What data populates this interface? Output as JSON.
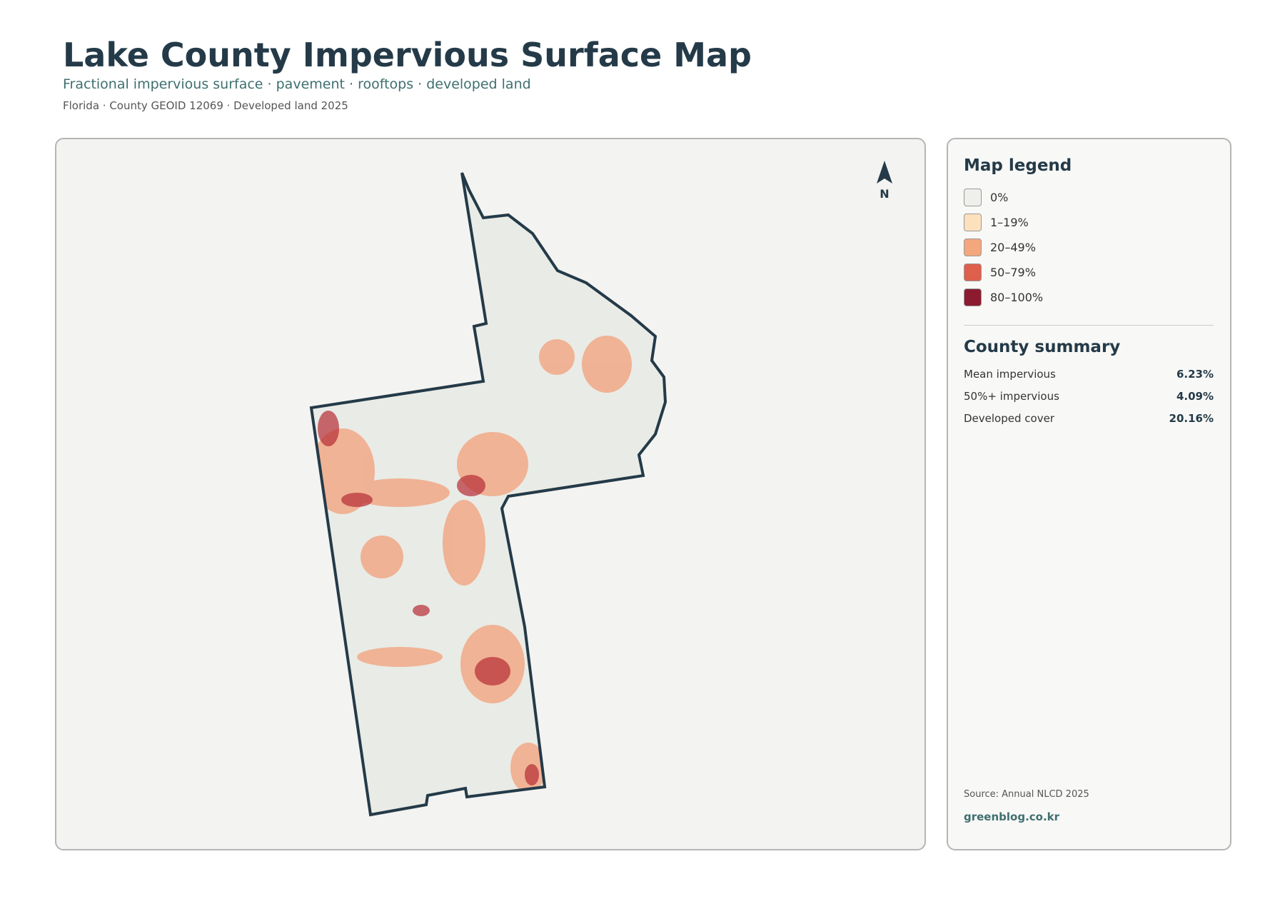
{
  "header": {
    "title": "Lake County Impervious Surface Map",
    "subtitle": "Fractional impervious surface · pavement · rooftops · developed land",
    "meta": "Florida · County GEOID 12069 · Developed land 2025"
  },
  "map": {
    "north": "N"
  },
  "legend": {
    "title": "Map legend",
    "items": [
      {
        "label": "0%",
        "color": "#efefec"
      },
      {
        "label": "1–19%",
        "color": "#fde1bd"
      },
      {
        "label": "20–49%",
        "color": "#f4a67c"
      },
      {
        "label": "50–79%",
        "color": "#de5f4c"
      },
      {
        "label": "80–100%",
        "color": "#8c1b30"
      }
    ]
  },
  "summary": {
    "title": "County summary",
    "rows": [
      {
        "label": "Mean impervious",
        "value": "6.23%"
      },
      {
        "label": "50%+ impervious",
        "value": "4.09%"
      },
      {
        "label": "Developed cover",
        "value": "20.16%"
      }
    ]
  },
  "footer": {
    "source": "Source: Annual NLCD 2025",
    "site": "greenblog.co.kr"
  }
}
